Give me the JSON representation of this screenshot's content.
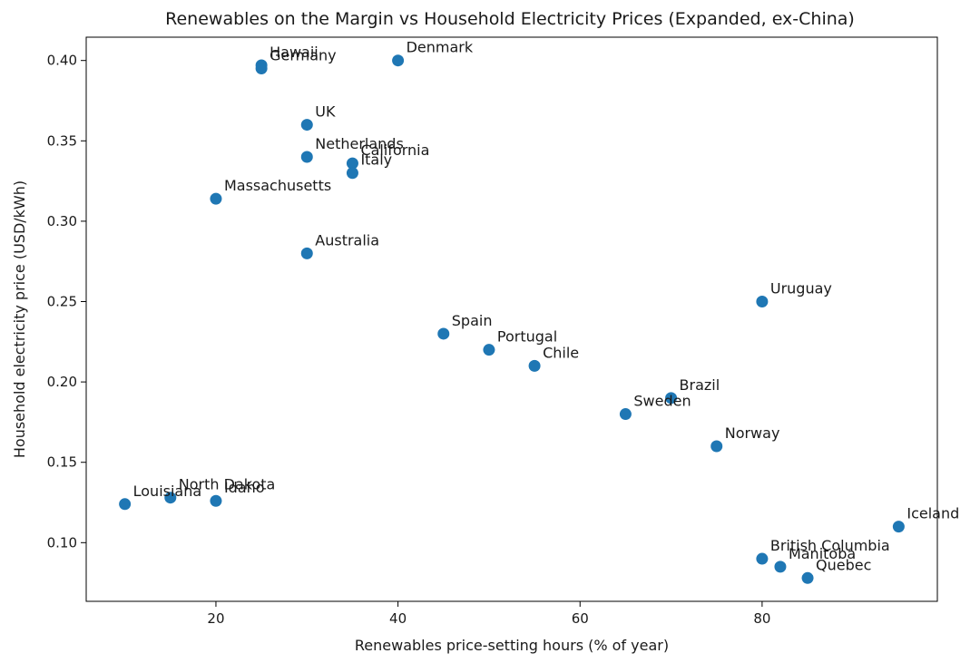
{
  "chart_data": {
    "type": "scatter",
    "title": "Renewables on the Margin vs Household Electricity Prices (Expanded, ex-China)",
    "xlabel": "Renewables price-setting hours (% of year)",
    "ylabel": "Household electricity price (USD/kWh)",
    "xlim": [
      5.75,
      99.25
    ],
    "ylim": [
      0.0635,
      0.4145
    ],
    "xticks": [
      20,
      40,
      60,
      80
    ],
    "xtick_labels": [
      "20",
      "40",
      "60",
      "80"
    ],
    "yticks": [
      0.1,
      0.15,
      0.2,
      0.25,
      0.3,
      0.35,
      0.4
    ],
    "ytick_labels": [
      "0.10",
      "0.15",
      "0.20",
      "0.25",
      "0.30",
      "0.35",
      "0.40"
    ],
    "grid": false,
    "marker_color": "#1f77b4",
    "points": [
      {
        "label": "Hawaii",
        "x": 25,
        "y": 0.397
      },
      {
        "label": "Germany",
        "x": 25,
        "y": 0.395
      },
      {
        "label": "Denmark",
        "x": 40,
        "y": 0.4
      },
      {
        "label": "UK",
        "x": 30,
        "y": 0.36
      },
      {
        "label": "Netherlands",
        "x": 30,
        "y": 0.34
      },
      {
        "label": "California",
        "x": 35,
        "y": 0.336
      },
      {
        "label": "Italy",
        "x": 35,
        "y": 0.33
      },
      {
        "label": "Massachusetts",
        "x": 20,
        "y": 0.314
      },
      {
        "label": "Australia",
        "x": 30,
        "y": 0.28
      },
      {
        "label": "Uruguay",
        "x": 80,
        "y": 0.25
      },
      {
        "label": "Spain",
        "x": 45,
        "y": 0.23
      },
      {
        "label": "Portugal",
        "x": 50,
        "y": 0.22
      },
      {
        "label": "Chile",
        "x": 55,
        "y": 0.21
      },
      {
        "label": "Brazil",
        "x": 70,
        "y": 0.19
      },
      {
        "label": "Sweden",
        "x": 65,
        "y": 0.18
      },
      {
        "label": "Norway",
        "x": 75,
        "y": 0.16
      },
      {
        "label": "Louisiana",
        "x": 10,
        "y": 0.124
      },
      {
        "label": "North Dakota",
        "x": 15,
        "y": 0.128
      },
      {
        "label": "Idaho",
        "x": 20,
        "y": 0.126
      },
      {
        "label": "Iceland",
        "x": 95,
        "y": 0.11
      },
      {
        "label": "British Columbia",
        "x": 80,
        "y": 0.09
      },
      {
        "label": "Manitoba",
        "x": 82,
        "y": 0.085
      },
      {
        "label": "Quebec",
        "x": 85,
        "y": 0.078
      }
    ]
  }
}
